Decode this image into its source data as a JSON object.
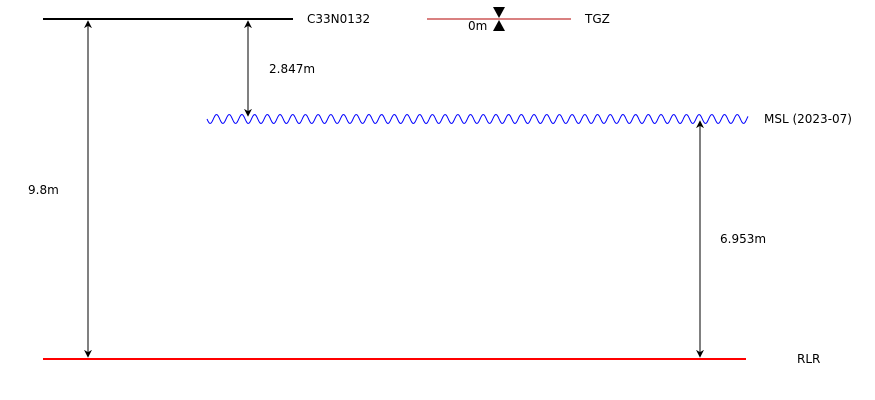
{
  "levels": {
    "benchmark": {
      "label": "C33N0132",
      "color": "#000000"
    },
    "tgz": {
      "label": "TGZ",
      "color": "#b30000"
    },
    "msl": {
      "label": "MSL (2023-07)",
      "color": "#0000ff"
    },
    "rlr": {
      "label": "RLR",
      "color": "#ff0000"
    }
  },
  "measurements": {
    "benchmark_to_rlr": "9.8m",
    "benchmark_to_msl": "2.847m",
    "msl_to_rlr": "6.953m",
    "tgz_offset": "0m"
  }
}
